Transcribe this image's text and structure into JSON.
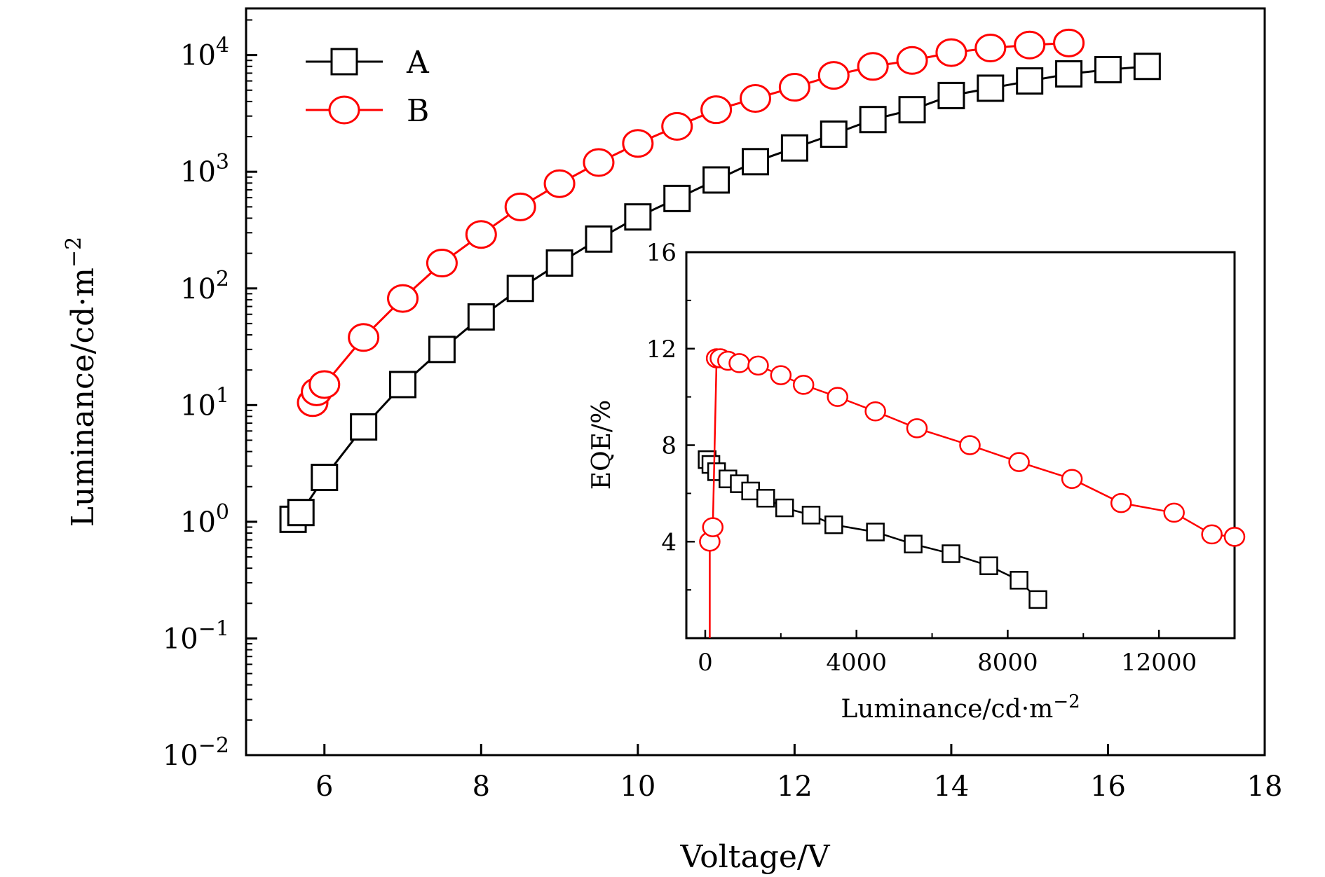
{
  "chart_data": [
    {
      "type": "line",
      "yscale": "log",
      "xlabel": "Voltage/V",
      "ylabel": "Luminance/cd·m",
      "ylabel_exp": "−2",
      "xlim": [
        5,
        18
      ],
      "ylim_exponent": [
        -2,
        4.4
      ],
      "xticks": [
        6,
        8,
        10,
        12,
        14,
        16,
        18
      ],
      "ytick_base": "10",
      "yticks_exp": [
        "−2",
        "−1",
        "0",
        "1",
        "2",
        "3",
        "4"
      ],
      "legend": {
        "position": "top-left",
        "entries": [
          "A",
          "B"
        ]
      },
      "series": [
        {
          "name": "A",
          "color": "#000000",
          "marker": "square",
          "x": [
            5.6,
            5.7,
            6.0,
            6.5,
            7.0,
            7.5,
            8.0,
            8.5,
            9.0,
            9.5,
            10.0,
            10.5,
            11.0,
            11.5,
            12.0,
            12.5,
            13.0,
            13.5,
            14.0,
            14.5,
            15.0,
            15.5,
            16.0,
            16.5
          ],
          "y": [
            1.05,
            1.2,
            2.4,
            6.5,
            15,
            30,
            57,
            100,
            165,
            265,
            410,
            590,
            850,
            1220,
            1600,
            2100,
            2800,
            3400,
            4500,
            5200,
            6000,
            6900,
            7500,
            8000
          ]
        },
        {
          "name": "B",
          "color": "#ff0000",
          "marker": "circle",
          "x": [
            5.85,
            5.9,
            6.0,
            6.5,
            7.0,
            7.5,
            8.0,
            8.5,
            9.0,
            9.5,
            10.0,
            10.5,
            11.0,
            11.5,
            12.0,
            12.5,
            13.0,
            13.5,
            14.0,
            14.5,
            15.0,
            15.5
          ],
          "y": [
            10.5,
            13,
            15,
            38,
            82,
            165,
            290,
            500,
            790,
            1200,
            1750,
            2450,
            3400,
            4250,
            5300,
            6700,
            8000,
            9000,
            10500,
            11500,
            12200,
            12700
          ]
        }
      ]
    },
    {
      "type": "line",
      "inset": true,
      "xlabel": "Luminance/cd·m",
      "xlabel_exp": "−2",
      "ylabel": "EQE/%",
      "xlim": [
        -500,
        14000
      ],
      "ylim": [
        0,
        16
      ],
      "xticks": [
        0,
        4000,
        8000,
        12000
      ],
      "xtick_labels": [
        "0",
        "4000",
        "8000",
        "12000"
      ],
      "yticks": [
        4,
        8,
        12,
        16
      ],
      "ytick_labels": [
        "4",
        "8",
        "12",
        "16"
      ],
      "series": [
        {
          "name": "A",
          "color": "#000000",
          "marker": "square",
          "x": [
            50,
            150,
            300,
            600,
            900,
            1200,
            1600,
            2100,
            2800,
            3400,
            4500,
            5500,
            6500,
            7500,
            8300,
            8800
          ],
          "y": [
            7.4,
            7.2,
            6.9,
            6.6,
            6.4,
            6.1,
            5.8,
            5.4,
            5.1,
            4.7,
            4.4,
            3.9,
            3.5,
            3.0,
            2.4,
            1.6
          ]
        },
        {
          "name": "B",
          "color": "#ff0000",
          "marker": "circle",
          "x": [
            120,
            200,
            300,
            400,
            600,
            900,
            1400,
            2000,
            2600,
            3500,
            4500,
            5600,
            7000,
            8300,
            9700,
            11000,
            12400,
            13400,
            14000
          ],
          "y": [
            4.0,
            4.6,
            11.6,
            11.6,
            11.5,
            11.4,
            11.3,
            10.9,
            10.5,
            10.0,
            9.4,
            8.7,
            8.0,
            7.3,
            6.6,
            5.6,
            5.2,
            4.3,
            4.2
          ]
        }
      ]
    }
  ]
}
